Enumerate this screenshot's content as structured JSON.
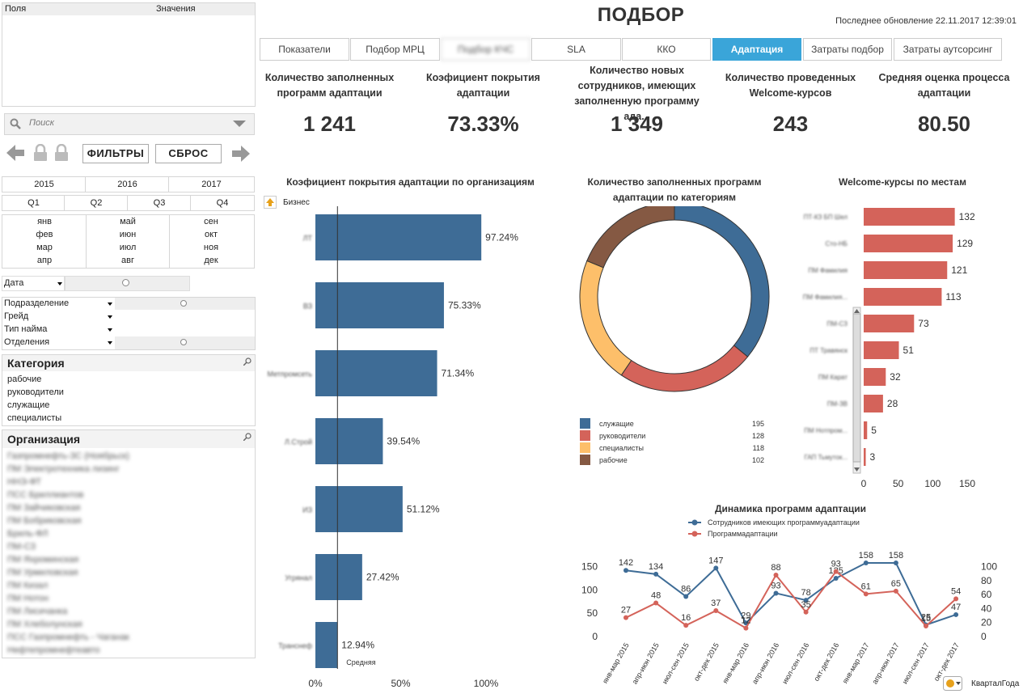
{
  "fields_panel": {
    "col_fields": "Поля",
    "col_values": "Значения"
  },
  "search": {
    "placeholder": "Поиск"
  },
  "buttons": {
    "filters": "ФИЛЬТРЫ",
    "reset": "СБРОС"
  },
  "years": [
    "2015",
    "2016",
    "2017"
  ],
  "quarters": [
    "Q1",
    "Q2",
    "Q3",
    "Q4"
  ],
  "months": [
    [
      "янв",
      "фев",
      "мар",
      "апр"
    ],
    [
      "май",
      "июн",
      "июл",
      "авг"
    ],
    [
      "сен",
      "окт",
      "ноя",
      "дек"
    ]
  ],
  "filters": {
    "date": "Дата",
    "division": "Подразделение",
    "grade": "Грейд",
    "hire_type": "Тип найма",
    "departments": "Отделения"
  },
  "category": {
    "title": "Категория",
    "items": [
      "рабочие",
      "руководители",
      "служащие",
      "специалисты"
    ]
  },
  "organization": {
    "title": "Организация",
    "items": [
      "Газпромнефть-ЗС (Ноябрьск)",
      "ПМ Электротехника лизинг",
      "ННЭ-ФТ",
      "ПСС Бриллиантов",
      "ПМ Зайчиковская",
      "ПМ Бобриковская",
      "Бриль-ФЛ",
      "ПМ-СЗ",
      "ПМ Яхроминская",
      "ПМ Урмиловская",
      "ПМ Кизал",
      "ПМ Нотон",
      "ПМ Лисичанка",
      "ПМ Хлеболунская",
      "ПСС Газпромнефть - Чаганак",
      "Нефтепромнефтеавто"
    ]
  },
  "header": {
    "title": "ПОДБОР",
    "updated": "Последнее обновление 22.11.2017 12:39:01"
  },
  "tabs": [
    "Показатели",
    "Подбор МРЦ",
    "Подбор КЧС",
    "SLA",
    "ККО",
    "Адаптация",
    "Затраты подбор",
    "Затраты аутсорсинг"
  ],
  "kpis": [
    {
      "label": "Количество заполненных программ адаптации",
      "value": "1 241"
    },
    {
      "label": "Коэфициент покрытия адаптации",
      "value": "73.33%"
    },
    {
      "label": "Количество новых сотрудников, имеющих заполненную программу ада...",
      "value": "1 349"
    },
    {
      "label": "Количество проведенных Welcome-курсов",
      "value": "243"
    },
    {
      "label": "Средняя оценка процесса адаптации",
      "value": "80.50"
    }
  ],
  "colors": {
    "accent": "#3aa5d9",
    "bar_blue": "#3e6c96",
    "bar_red": "#d4635a",
    "donut": [
      "#3e6c96",
      "#d4635a",
      "#fdbf6a",
      "#855943"
    ]
  },
  "chart_data": [
    {
      "type": "bar",
      "title": "Коэфициент покрытия адаптации по организациям",
      "dimension_label": "Бизнес",
      "categories": [
        "ЛТ",
        "ВЗ",
        "Метпромсеть",
        "Л.Строй",
        "ИЗ",
        "Угрянал",
        "Транснеф"
      ],
      "values": [
        97.24,
        75.33,
        71.34,
        39.54,
        51.12,
        27.42,
        12.94
      ],
      "labels": [
        "97.24%",
        "75.33%",
        "71.34%",
        "39.54%",
        "51.12%",
        "27.42%",
        "12.94%"
      ],
      "reference_value": 12.94,
      "reference_label": "Средняя",
      "xticks": [
        "0%",
        "50%",
        "100%"
      ],
      "xlim": [
        0,
        100
      ]
    },
    {
      "type": "pie",
      "title": "Количество заполненных программ адаптации по категориям",
      "slices": [
        {
          "label": "служащие",
          "value": 195
        },
        {
          "label": "руководители",
          "value": 128
        },
        {
          "label": "специалисты",
          "value": 118
        },
        {
          "label": "рабочие",
          "value": 102
        }
      ]
    },
    {
      "type": "bar",
      "title": "Welcome-курсы по местам",
      "categories": [
        "ПТ-КЗ БП Шел",
        "Сто-НБ",
        "ПМ Фамилия",
        "ПМ Фамилия...",
        "ПМ-СЗ",
        "ПТ Травянск",
        "ПМ Карат",
        "ПМ-ЗВ",
        "ПМ Нотпром...",
        "ГАП Тьмуток..."
      ],
      "values": [
        132,
        129,
        121,
        113,
        73,
        51,
        32,
        28,
        5,
        3
      ],
      "xticks": [
        "0",
        "50",
        "100",
        "150"
      ],
      "xlim": [
        0,
        150
      ]
    },
    {
      "type": "line",
      "title": "Динамика программ адаптации",
      "x": [
        "янв-мар 2015",
        "апр-июн 2015",
        "июл-сен 2015",
        "окт-дек 2015",
        "янв-мар 2016",
        "апр-июн 2016",
        "июл-сен 2016",
        "окт-дек 2016",
        "янв-мар 2017",
        "апр-июн 2017",
        "июл-сен 2017",
        "окт-дек 2017"
      ],
      "series": [
        {
          "name": "Сотрудников имеющих программуадаптации",
          "axis": "left",
          "values": [
            142,
            134,
            86,
            147,
            29,
            93,
            78,
            125,
            158,
            158,
            25,
            47
          ]
        },
        {
          "name": "Программадаптации",
          "axis": "right",
          "values": [
            27,
            48,
            16,
            37,
            12,
            88,
            35,
            93,
            61,
            65,
            15,
            54
          ]
        }
      ],
      "y_left_ticks": [
        "0",
        "50",
        "100",
        "150"
      ],
      "y_left_lim": [
        0,
        165
      ],
      "y_right_ticks": [
        "0",
        "20",
        "40",
        "60",
        "80",
        "100"
      ],
      "y_right_lim": [
        0,
        110
      ],
      "dimension_label": "КварталГода"
    }
  ]
}
